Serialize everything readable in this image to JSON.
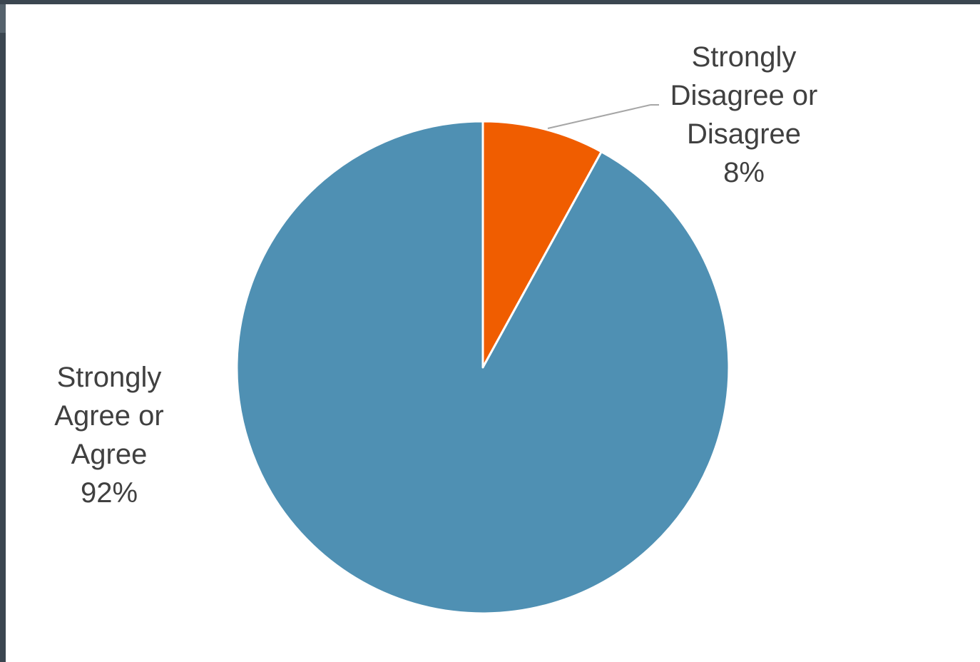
{
  "chart_data": {
    "type": "pie",
    "title": "",
    "slices": [
      {
        "label_lines": [
          "Strongly",
          "Disagree or",
          "Disagree"
        ],
        "value": 8,
        "value_label": "8%",
        "color": "#f05d00"
      },
      {
        "label_lines": [
          "Strongly",
          "Agree or",
          "Agree"
        ],
        "value": 92,
        "value_label": "92%",
        "color": "#4f90b3"
      }
    ],
    "start_angle": "12 o'clock",
    "direction": "clockwise",
    "legend": "none",
    "data_labels": "outside with leader line for small slice"
  },
  "colors": {
    "background": "#ffffff",
    "frame": "#3b4650",
    "label_text": "#404040",
    "slice_border": "#ffffff",
    "leader_line": "#a6a6a6"
  }
}
